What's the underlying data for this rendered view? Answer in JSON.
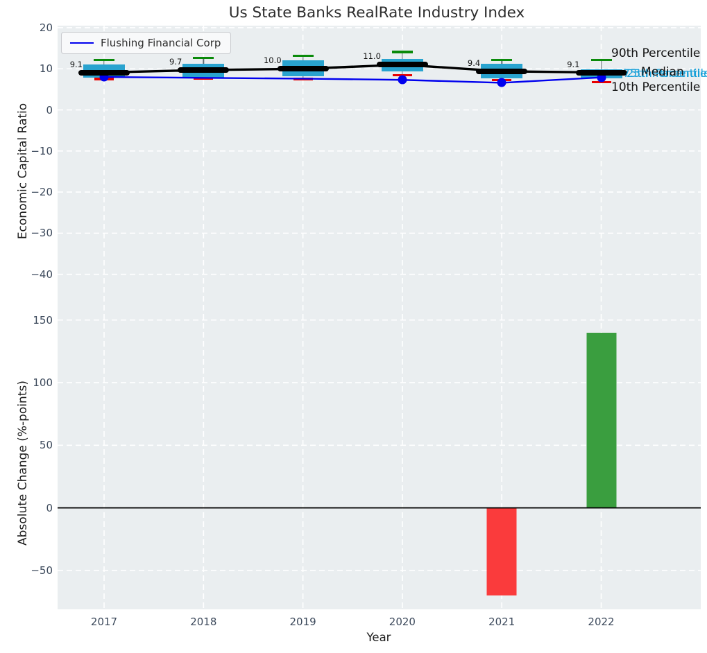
{
  "title": "Us State Banks RealRate Industry Index",
  "xlabel": "Year",
  "legend": {
    "label": "Flushing Financial Corp"
  },
  "right_labels": {
    "p90": "90th Percentile",
    "median": "Median",
    "p25": "25th Percentile",
    "p75": "75th Percentile",
    "p10": "10th Percentile"
  },
  "colors": {
    "axes_bg": "#eaeef0",
    "grid": "#ffffff",
    "box_fill": "#29a3cf",
    "whisker": "#5f6a72",
    "cap_top_green": "#0a8a0a",
    "cap_bottom_red": "#e80000",
    "median_black": "#000000",
    "company_blue": "#0000ee",
    "bar_positive_green": "#3a9e3f",
    "bar_negative_red": "#fa3b3c",
    "tick_label": "#3d4a5c",
    "cyan_label": "#18a0d8",
    "zero_line": "#000000"
  },
  "chart_data": [
    {
      "type": "box",
      "panel": "top",
      "ylabel": "Economic Capital Ratio",
      "yticks": [
        20,
        10,
        0,
        -10,
        -20,
        -30,
        -40
      ],
      "ylim": [
        -49,
        20.5
      ],
      "x": [
        2017,
        2018,
        2019,
        2020,
        2021,
        2022
      ],
      "boxes": [
        {
          "year": 2017,
          "p10": 7.5,
          "q1": 7.8,
          "median": 9.1,
          "q3": 11.0,
          "p90": 12.1,
          "label": "9.1"
        },
        {
          "year": 2018,
          "p10": 7.6,
          "q1": 7.7,
          "median": 9.7,
          "q3": 11.2,
          "p90": 12.6,
          "label": "9.7"
        },
        {
          "year": 2019,
          "p10": 7.5,
          "q1": 8.2,
          "median": 10.0,
          "q3": 12.0,
          "p90": 13.1,
          "label": "10.0"
        },
        {
          "year": 2020,
          "p10": 8.4,
          "q1": 9.4,
          "median": 11.0,
          "q3": 12.4,
          "p90": 14.1,
          "label": "11.0"
        },
        {
          "year": 2021,
          "p10": 7.3,
          "q1": 7.7,
          "median": 9.4,
          "q3": 11.2,
          "p90": 12.2,
          "label": "9.4"
        },
        {
          "year": 2022,
          "p10": 6.8,
          "q1": 7.6,
          "median": 9.1,
          "q3": 9.9,
          "p90": 12.2,
          "label": "9.1"
        }
      ],
      "company_series": {
        "name": "Flushing Financial Corp",
        "values": [
          8.0,
          7.8,
          7.6,
          7.3,
          6.6,
          7.9
        ],
        "markers": [
          true,
          false,
          false,
          true,
          true,
          true
        ]
      },
      "legend_position": "upper left",
      "grid": true
    },
    {
      "type": "bar",
      "panel": "bottom",
      "ylabel": "Absolute Change (%-points)",
      "yticks": [
        150,
        100,
        50,
        0,
        -50
      ],
      "ylim": [
        -81,
        157
      ],
      "x": [
        2017,
        2018,
        2019,
        2020,
        2021,
        2022
      ],
      "values": [
        0,
        0,
        0,
        0,
        -70,
        140
      ],
      "zero_line": true,
      "grid": true
    }
  ]
}
